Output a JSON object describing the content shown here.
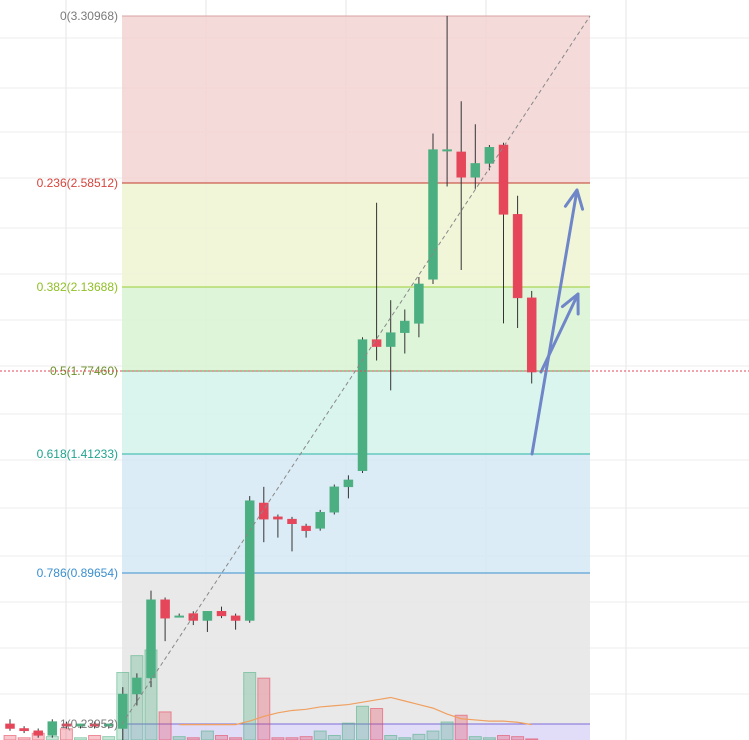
{
  "chart_data": {
    "type": "candlestick",
    "grid": true,
    "fib_levels": [
      {
        "label": "0(3.30968)",
        "ratio": 0,
        "price": 3.30968,
        "line_color": "#d9a3a3",
        "label_color": "#7a7a7a",
        "zone_color": "#f3d3d3"
      },
      {
        "label": "0.236(2.58512)",
        "ratio": 0.236,
        "price": 2.58512,
        "line_color": "#c0392b",
        "label_color": "#d6453d",
        "zone_color": "#eef5d2"
      },
      {
        "label": "0.382(2.13688)",
        "ratio": 0.382,
        "price": 2.13688,
        "line_color": "#9acd32",
        "label_color": "#8fbf24",
        "zone_color": "#d9f3d4"
      },
      {
        "label": "0.5(1.77460)",
        "ratio": 0.5,
        "price": 1.7746,
        "line_color": "#4caf50",
        "label_color": "#6d8f2a",
        "zone_color": "#d4f3ea"
      },
      {
        "label": "0.618(1.41233)",
        "ratio": 0.618,
        "price": 1.41233,
        "line_color": "#2bb3a3",
        "label_color": "#21a38f",
        "zone_color": "#d6e9f5"
      },
      {
        "label": "0.786(0.89654)",
        "ratio": 0.786,
        "price": 0.89654,
        "line_color": "#3a8fd0",
        "label_color": "#3a8fd0",
        "zone_color": "#e5e5e5"
      },
      {
        "label": "1(0.23953)",
        "ratio": 1,
        "price": 0.23953,
        "line_color": "#7b6bd6",
        "label_color": "#7a7a7a",
        "zone_color": "#dcd6f7"
      }
    ],
    "current_price_line": 1.7746,
    "candles": [
      {
        "o": 0.24,
        "h": 0.26,
        "l": 0.21,
        "c": 0.22
      },
      {
        "o": 0.22,
        "h": 0.23,
        "l": 0.2,
        "c": 0.21
      },
      {
        "o": 0.21,
        "h": 0.22,
        "l": 0.18,
        "c": 0.19
      },
      {
        "o": 0.19,
        "h": 0.26,
        "l": 0.18,
        "c": 0.25
      },
      {
        "o": 0.24,
        "h": 0.25,
        "l": 0.22,
        "c": 0.23
      },
      {
        "o": 0.23,
        "h": 0.24,
        "l": 0.22,
        "c": 0.24
      },
      {
        "o": 0.24,
        "h": 0.25,
        "l": 0.22,
        "c": 0.23
      },
      {
        "o": 0.23,
        "h": 0.24,
        "l": 0.22,
        "c": 0.24
      },
      {
        "o": 0.22,
        "h": 0.4,
        "l": 0.15,
        "c": 0.37
      },
      {
        "o": 0.37,
        "h": 0.46,
        "l": 0.32,
        "c": 0.44
      },
      {
        "o": 0.44,
        "h": 0.82,
        "l": 0.4,
        "c": 0.78
      },
      {
        "o": 0.78,
        "h": 0.79,
        "l": 0.6,
        "c": 0.7
      },
      {
        "o": 0.71,
        "h": 0.72,
        "l": 0.71,
        "c": 0.71
      },
      {
        "o": 0.72,
        "h": 0.73,
        "l": 0.67,
        "c": 0.69
      },
      {
        "o": 0.69,
        "h": 0.73,
        "l": 0.64,
        "c": 0.73
      },
      {
        "o": 0.73,
        "h": 0.75,
        "l": 0.7,
        "c": 0.71
      },
      {
        "o": 0.71,
        "h": 0.72,
        "l": 0.65,
        "c": 0.69
      },
      {
        "o": 0.69,
        "h": 1.23,
        "l": 0.68,
        "c": 1.21
      },
      {
        "o": 1.2,
        "h": 1.27,
        "l": 1.03,
        "c": 1.13
      },
      {
        "o": 1.14,
        "h": 1.15,
        "l": 1.05,
        "c": 1.13
      },
      {
        "o": 1.13,
        "h": 1.14,
        "l": 0.99,
        "c": 1.11
      },
      {
        "o": 1.1,
        "h": 1.11,
        "l": 1.05,
        "c": 1.08
      },
      {
        "o": 1.09,
        "h": 1.17,
        "l": 1.08,
        "c": 1.16
      },
      {
        "o": 1.16,
        "h": 1.28,
        "l": 1.15,
        "c": 1.27
      },
      {
        "o": 1.27,
        "h": 1.32,
        "l": 1.22,
        "c": 1.3
      },
      {
        "o": 1.34,
        "h": 1.92,
        "l": 1.33,
        "c": 1.91
      },
      {
        "o": 1.91,
        "h": 2.5,
        "l": 1.82,
        "c": 1.88
      },
      {
        "o": 1.88,
        "h": 2.08,
        "l": 1.69,
        "c": 1.94
      },
      {
        "o": 1.94,
        "h": 2.04,
        "l": 1.85,
        "c": 1.99
      },
      {
        "o": 1.98,
        "h": 2.18,
        "l": 1.92,
        "c": 2.15
      },
      {
        "o": 2.17,
        "h": 2.8,
        "l": 2.15,
        "c": 2.73
      },
      {
        "o": 2.73,
        "h": 3.31,
        "l": 2.57,
        "c": 2.73
      },
      {
        "o": 2.72,
        "h": 2.94,
        "l": 2.21,
        "c": 2.61
      },
      {
        "o": 2.61,
        "h": 2.84,
        "l": 2.56,
        "c": 2.67
      },
      {
        "o": 2.67,
        "h": 2.75,
        "l": 2.64,
        "c": 2.74
      },
      {
        "o": 2.75,
        "h": 2.76,
        "l": 1.98,
        "c": 2.45
      },
      {
        "o": 2.45,
        "h": 2.53,
        "l": 1.96,
        "c": 2.09
      },
      {
        "o": 2.09,
        "h": 2.12,
        "l": 1.72,
        "c": 1.77
      }
    ],
    "volume": [
      4,
      2,
      6,
      3,
      10,
      2,
      4,
      3,
      60,
      75,
      80,
      25,
      3,
      2,
      8,
      4,
      2,
      60,
      55,
      2,
      2,
      3,
      8,
      4,
      15,
      30,
      28,
      4,
      2,
      5,
      8,
      16,
      22,
      3,
      2,
      4,
      3,
      1
    ],
    "volume_ma": [
      null,
      null,
      null,
      null,
      null,
      null,
      null,
      null,
      null,
      null,
      null,
      null,
      13,
      13,
      13,
      13,
      13,
      16,
      20,
      23,
      25,
      26,
      28,
      29,
      30,
      32,
      34,
      36,
      33,
      30,
      27,
      22,
      18,
      17,
      16,
      16,
      15,
      13
    ]
  }
}
